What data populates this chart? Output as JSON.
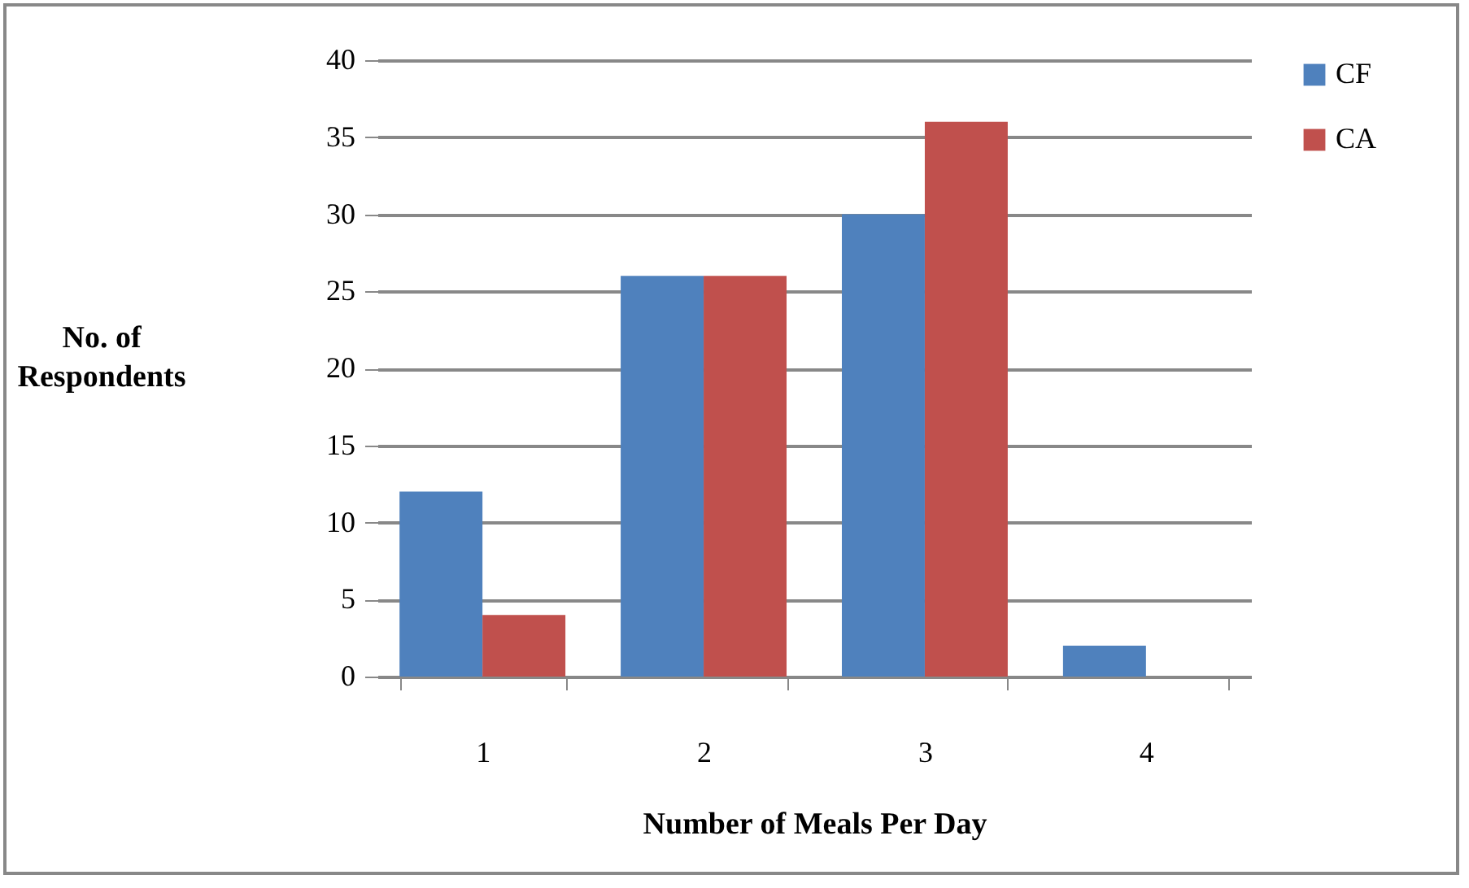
{
  "chart_data": {
    "type": "bar",
    "xlabel": "Number of Meals Per Day",
    "ylabel": "No. of Respondents",
    "categories": [
      "1",
      "2",
      "3",
      "4"
    ],
    "series": [
      {
        "name": "CF",
        "color": "#4f81bd",
        "values": [
          12,
          26,
          30,
          2
        ]
      },
      {
        "name": "CA",
        "color": "#c0504d",
        "values": [
          4,
          26,
          36,
          0
        ]
      }
    ],
    "ylim": [
      0,
      40
    ],
    "yticks": [
      0,
      5,
      10,
      15,
      20,
      25,
      30,
      35,
      40
    ],
    "grid": "y",
    "legend": "right"
  }
}
